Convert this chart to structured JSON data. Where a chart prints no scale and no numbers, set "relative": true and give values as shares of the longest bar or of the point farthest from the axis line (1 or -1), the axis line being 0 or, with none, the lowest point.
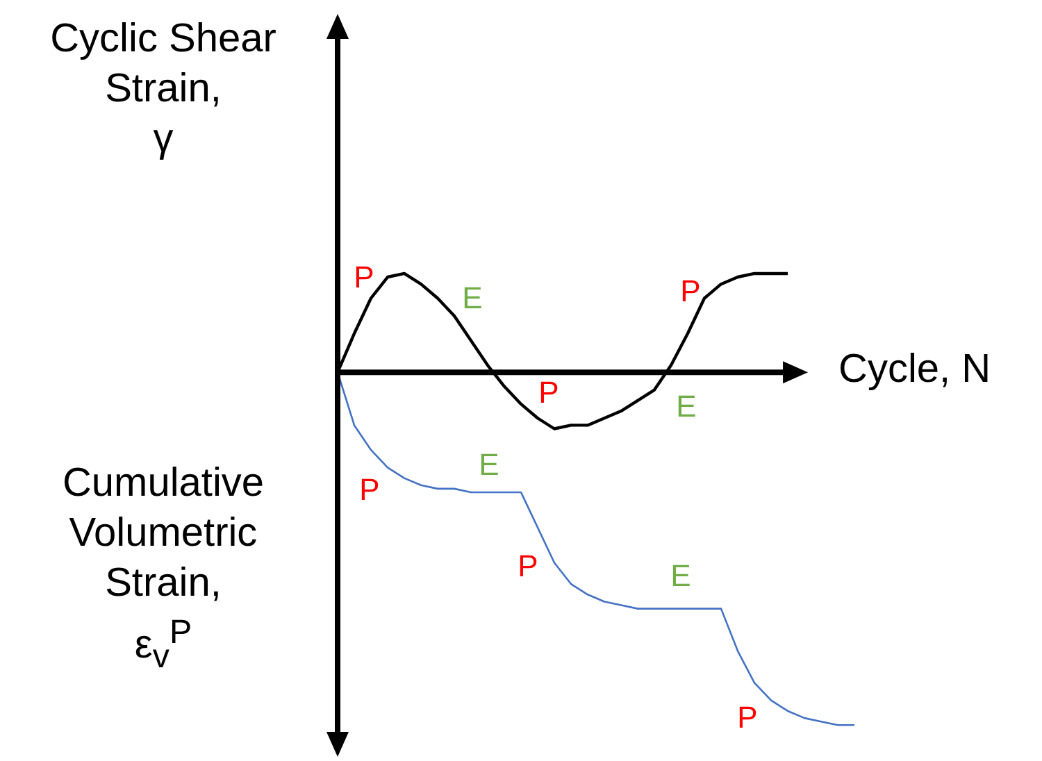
{
  "chart_data": {
    "type": "line",
    "relative": true,
    "xlabel": "Cycle, N",
    "ylabel": "Cyclic Shear Strain, γ",
    "marker": "none",
    "legend": false,
    "categories": [
      null,
      null,
      null,
      null,
      null,
      null,
      null,
      null,
      null,
      null,
      null,
      null,
      null,
      null,
      null,
      null,
      null,
      null,
      null,
      null,
      null,
      null,
      null,
      null,
      null,
      null,
      null,
      null,
      null,
      null,
      null,
      null
    ],
    "series": [
      {
        "color": "#000000",
        "values": [
          0,
          0.11,
          0.21,
          0.27,
          0.28,
          0.25,
          0.21,
          0.16,
          0.09,
          0.02,
          -0.04,
          -0.09,
          -0.13,
          -0.16,
          -0.15,
          -0.15,
          -0.13,
          -0.11,
          -0.08,
          -0.05,
          0.02,
          0.11,
          0.21,
          0.25,
          0.27,
          0.28,
          0.28,
          0.28,
          null,
          null,
          null,
          null
        ]
      },
      {
        "color": "#4472c4",
        "values": [
          0,
          -0.15,
          -0.22,
          -0.27,
          -0.3,
          -0.32,
          -0.33,
          -0.33,
          -0.34,
          -0.34,
          -0.34,
          -0.34,
          -0.44,
          -0.54,
          -0.6,
          -0.63,
          -0.65,
          -0.66,
          -0.67,
          -0.67,
          -0.67,
          -0.67,
          -0.67,
          -0.67,
          -0.79,
          -0.88,
          -0.93,
          -0.96,
          -0.98,
          -0.99,
          -1,
          -1
        ]
      }
    ],
    "annotations": [
      "Cumulative Volumetric Strain, ε$_{v}$$^{P}$",
      "P",
      "E",
      "P",
      "P",
      "E",
      "P",
      "E",
      "P",
      "E",
      "P"
    ]
  }
}
